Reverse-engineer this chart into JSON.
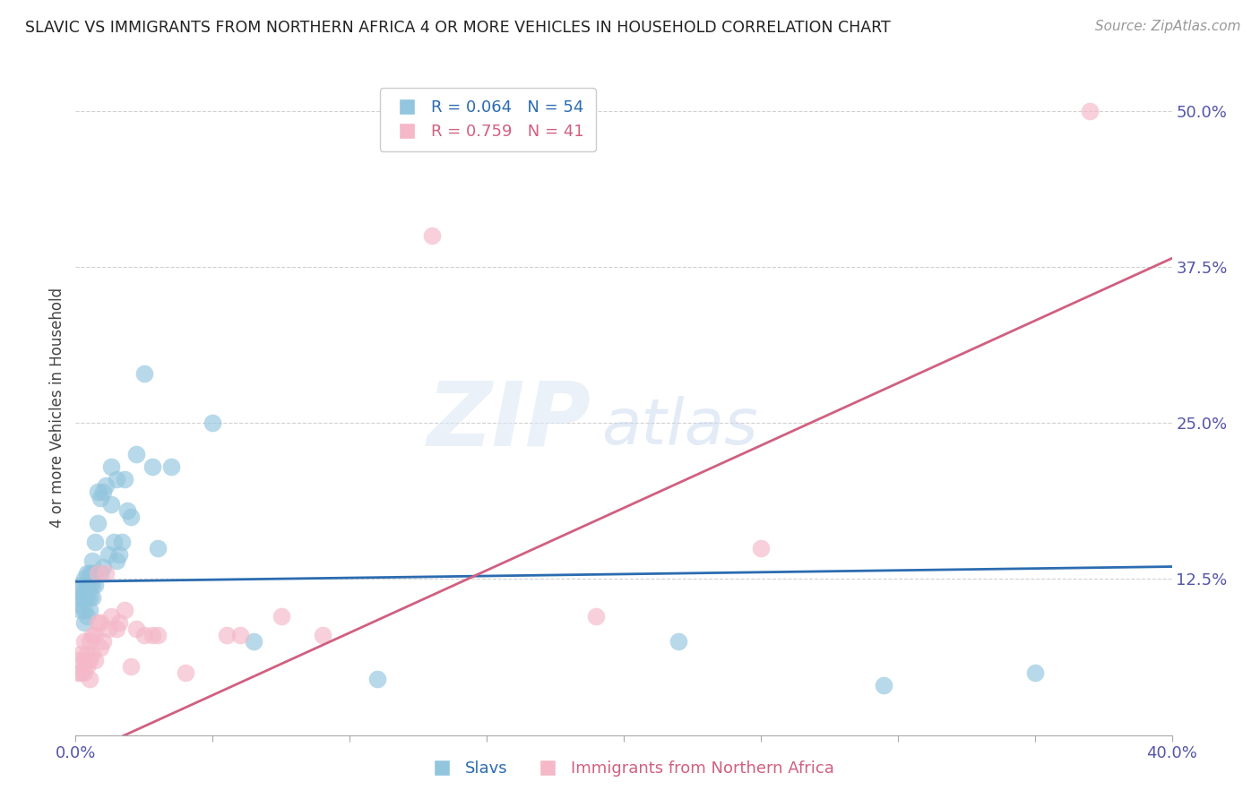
{
  "title": "SLAVIC VS IMMIGRANTS FROM NORTHERN AFRICA 4 OR MORE VEHICLES IN HOUSEHOLD CORRELATION CHART",
  "source": "Source: ZipAtlas.com",
  "ylabel": "4 or more Vehicles in Household",
  "xlim": [
    0.0,
    0.4
  ],
  "ylim": [
    0.0,
    0.525
  ],
  "yticks": [
    0.0,
    0.125,
    0.25,
    0.375,
    0.5
  ],
  "ytick_labels": [
    "",
    "12.5%",
    "25.0%",
    "37.5%",
    "50.0%"
  ],
  "xticks": [
    0.0,
    0.05,
    0.1,
    0.15,
    0.2,
    0.25,
    0.3,
    0.35,
    0.4
  ],
  "xtick_labels": [
    "0.0%",
    "",
    "",
    "",
    "",
    "",
    "",
    "",
    "40.0%"
  ],
  "slavs_color": "#92c5de",
  "nafrica_color": "#f4b8c8",
  "slavs_line_color": "#2b6cb0",
  "nafrica_line_color": "#d06080",
  "slavs_R": 0.064,
  "slavs_N": 54,
  "nafrica_R": 0.759,
  "nafrica_N": 41,
  "slavs_intercept": 0.123,
  "slavs_slope": 0.03,
  "nafrica_intercept": -0.018,
  "nafrica_slope": 1.0,
  "watermark_zip": "ZIP",
  "watermark_atlas": "atlas",
  "background_color": "#ffffff",
  "slavs_x": [
    0.001,
    0.001,
    0.002,
    0.002,
    0.002,
    0.003,
    0.003,
    0.003,
    0.003,
    0.003,
    0.004,
    0.004,
    0.004,
    0.004,
    0.005,
    0.005,
    0.005,
    0.005,
    0.006,
    0.006,
    0.006,
    0.006,
    0.007,
    0.007,
    0.007,
    0.008,
    0.008,
    0.009,
    0.009,
    0.01,
    0.01,
    0.011,
    0.012,
    0.013,
    0.013,
    0.014,
    0.015,
    0.015,
    0.016,
    0.017,
    0.018,
    0.019,
    0.02,
    0.022,
    0.025,
    0.028,
    0.03,
    0.035,
    0.05,
    0.065,
    0.11,
    0.22,
    0.295,
    0.35
  ],
  "slavs_y": [
    0.105,
    0.115,
    0.1,
    0.11,
    0.12,
    0.09,
    0.1,
    0.11,
    0.115,
    0.125,
    0.095,
    0.11,
    0.12,
    0.13,
    0.1,
    0.11,
    0.12,
    0.13,
    0.11,
    0.12,
    0.13,
    0.14,
    0.12,
    0.13,
    0.155,
    0.17,
    0.195,
    0.13,
    0.19,
    0.135,
    0.195,
    0.2,
    0.145,
    0.185,
    0.215,
    0.155,
    0.14,
    0.205,
    0.145,
    0.155,
    0.205,
    0.18,
    0.175,
    0.225,
    0.29,
    0.215,
    0.15,
    0.215,
    0.25,
    0.075,
    0.045,
    0.075,
    0.04,
    0.05
  ],
  "nafrica_x": [
    0.001,
    0.001,
    0.002,
    0.002,
    0.003,
    0.003,
    0.003,
    0.004,
    0.004,
    0.005,
    0.005,
    0.005,
    0.006,
    0.006,
    0.007,
    0.007,
    0.008,
    0.008,
    0.009,
    0.009,
    0.01,
    0.011,
    0.012,
    0.013,
    0.015,
    0.016,
    0.018,
    0.02,
    0.022,
    0.025,
    0.028,
    0.03,
    0.04,
    0.055,
    0.06,
    0.075,
    0.09,
    0.13,
    0.19,
    0.25,
    0.37
  ],
  "nafrica_y": [
    0.05,
    0.06,
    0.05,
    0.065,
    0.05,
    0.06,
    0.075,
    0.055,
    0.065,
    0.045,
    0.06,
    0.075,
    0.065,
    0.08,
    0.06,
    0.08,
    0.09,
    0.13,
    0.07,
    0.09,
    0.075,
    0.13,
    0.085,
    0.095,
    0.085,
    0.09,
    0.1,
    0.055,
    0.085,
    0.08,
    0.08,
    0.08,
    0.05,
    0.08,
    0.08,
    0.095,
    0.08,
    0.4,
    0.095,
    0.15,
    0.5
  ]
}
